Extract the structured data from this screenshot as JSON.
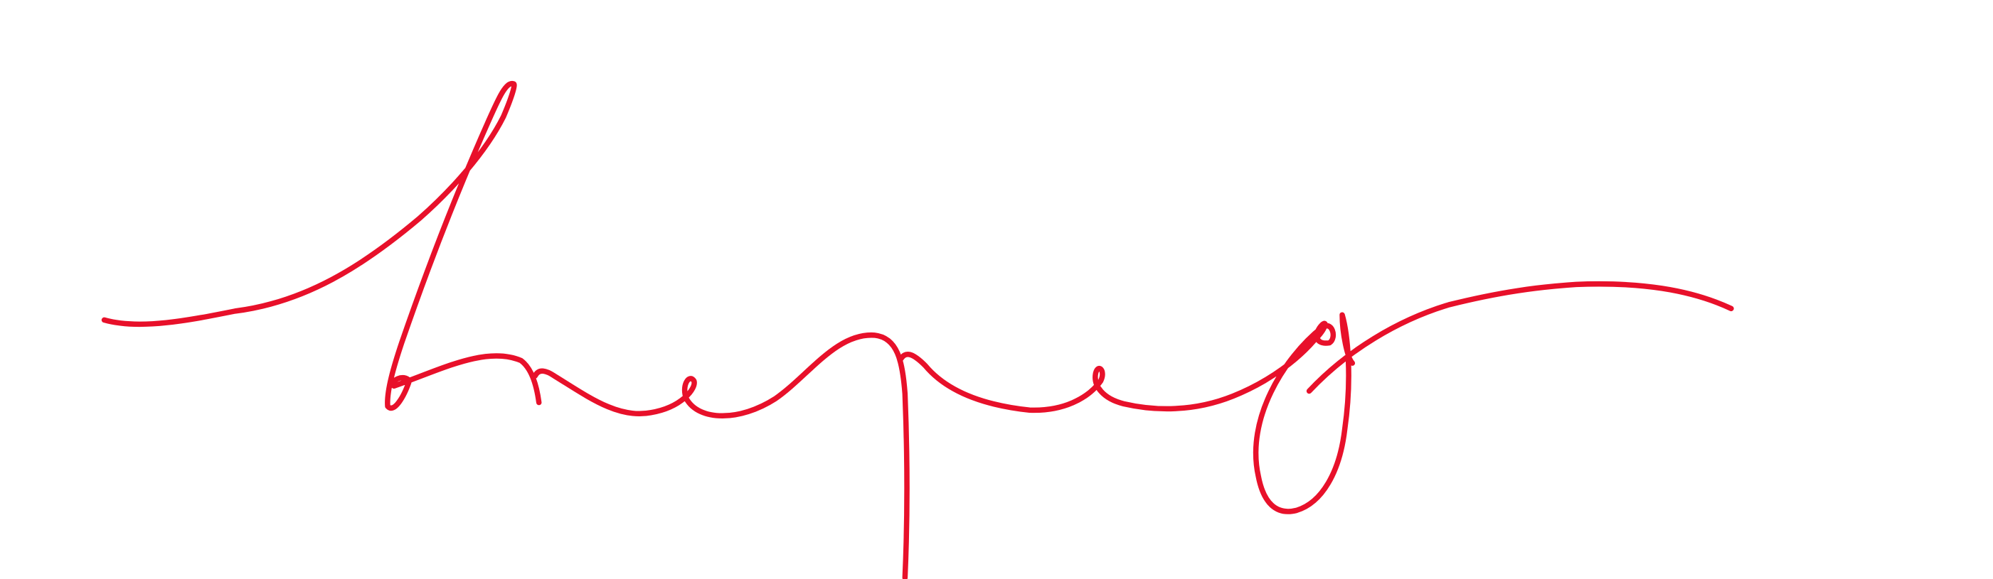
{
  "page": {
    "background_color": "#ffffff"
  },
  "signature": {
    "ink_color": "#e8102a",
    "description_type": "handwritten signature"
  }
}
